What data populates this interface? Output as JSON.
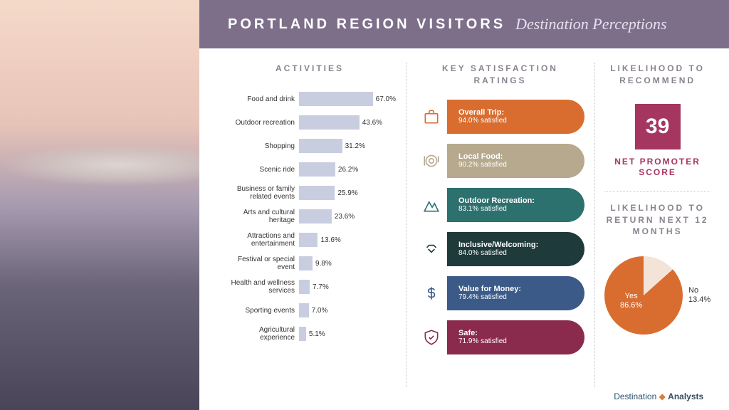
{
  "header": {
    "title": "PORTLAND REGION VISITORS",
    "subtitle": "Destination Perceptions",
    "bg_color": "#7d6e8a",
    "title_color": "#ffffff"
  },
  "activities": {
    "title": "ACTIVITIES",
    "bar_color": "#c9cde0",
    "max_pct": 70,
    "items": [
      {
        "label": "Food and drink",
        "value": 67.0,
        "value_label": "67.0%"
      },
      {
        "label": "Outdoor recreation",
        "value": 43.6,
        "value_label": "43.6%"
      },
      {
        "label": "Shopping",
        "value": 31.2,
        "value_label": "31.2%"
      },
      {
        "label": "Scenic ride",
        "value": 26.2,
        "value_label": "26.2%"
      },
      {
        "label": "Business or family related events",
        "value": 25.9,
        "value_label": "25.9%"
      },
      {
        "label": "Arts and cultural heritage",
        "value": 23.6,
        "value_label": "23.6%"
      },
      {
        "label": "Attractions and entertainment",
        "value": 13.6,
        "value_label": "13.6%"
      },
      {
        "label": "Festival or special event",
        "value": 9.8,
        "value_label": "9.8%"
      },
      {
        "label": "Health and wellness services",
        "value": 7.7,
        "value_label": "7.7%"
      },
      {
        "label": "Sporting events",
        "value": 7.0,
        "value_label": "7.0%"
      },
      {
        "label": "Agricultural experience",
        "value": 5.1,
        "value_label": "5.1%"
      }
    ]
  },
  "satisfaction": {
    "title": "KEY SATISFACTION RATINGS",
    "items": [
      {
        "icon": "suitcase",
        "name": "Overall Trip:",
        "value": "94.0% satisfied",
        "color": "#d96d2f"
      },
      {
        "icon": "plate",
        "name": "Local Food:",
        "value": "90.2% satisfied",
        "color": "#b6a98e"
      },
      {
        "icon": "mountain",
        "name": "Outdoor Recreation:",
        "value": "83.1% satisfied",
        "color": "#2d716f"
      },
      {
        "icon": "handshake",
        "name": "Inclusive/Welcoming:",
        "value": "84.0% satisfied",
        "color": "#1f3a3a"
      },
      {
        "icon": "dollar",
        "name": "Value for Money:",
        "value": "79.4% satisfied",
        "color": "#3b5a88"
      },
      {
        "icon": "shield",
        "name": "Safe:",
        "value": "71.9% satisfied",
        "color": "#8a2a4d"
      }
    ]
  },
  "nps": {
    "title": "LIKELIHOOD TO RECOMMEND",
    "score": "39",
    "label": "NET PROMOTER SCORE",
    "box_color": "#a53660",
    "text_color": "#a53660"
  },
  "return": {
    "title": "LIKELIHOOD TO RETURN NEXT 12 MONTHS",
    "yes_pct": 86.6,
    "no_pct": 13.4,
    "yes_label": "Yes",
    "yes_value": "86.6%",
    "no_label": "No",
    "no_value": "13.4%",
    "yes_color": "#d96d2f",
    "no_color": "#f4e4d8"
  },
  "footer": {
    "brand1": "Destination",
    "brand2": "Analysts"
  }
}
